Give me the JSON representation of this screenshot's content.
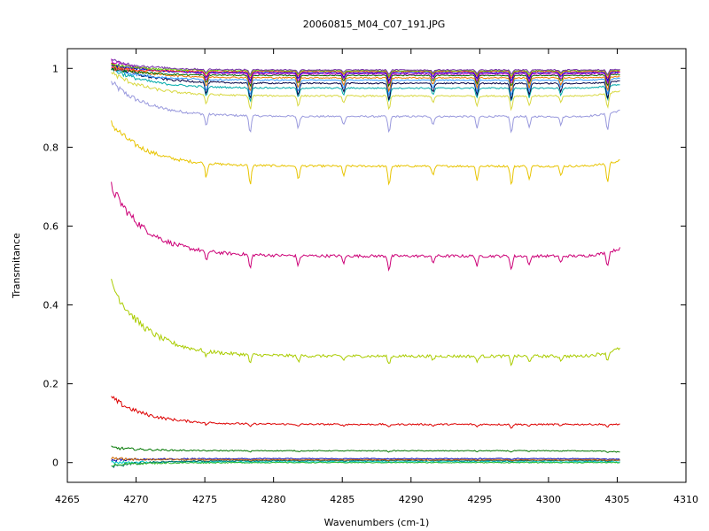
{
  "chart_data": {
    "type": "line",
    "title": "20060815_M04_C07_191.JPG",
    "xlabel": "Wavenumbers (cm-1)",
    "ylabel": "Transmitance",
    "xlim": [
      4265,
      4310
    ],
    "ylim": [
      -0.05,
      1.05
    ],
    "x_ticks": [
      4265,
      4270,
      4275,
      4280,
      4285,
      4290,
      4295,
      4300,
      4305,
      4310
    ],
    "x_tick_labels": [
      "4265",
      "4270",
      "4275",
      "4280",
      "4285",
      "4290",
      "4295",
      "4300",
      "4305",
      "4310"
    ],
    "y_ticks": [
      0,
      0.2,
      0.4,
      0.6,
      0.8,
      1
    ],
    "y_tick_labels": [
      "0",
      "0.2",
      "0.4",
      "0.6",
      "0.8",
      "1"
    ],
    "grid": false,
    "x_range": [
      4268.2,
      4305.2
    ],
    "absorption_lines_x": [
      4275.1,
      4278.3,
      4281.8,
      4285.1,
      4288.4,
      4291.6,
      4294.8,
      4297.3,
      4298.6,
      4300.9,
      4304.3
    ],
    "series": [
      {
        "color": "#9999dd",
        "start": 0.965,
        "plateau": 0.878,
        "end": 0.893,
        "dip": 0.03
      },
      {
        "color": "#e8c400",
        "start": 0.86,
        "plateau": 0.752,
        "end": 0.766,
        "dip": 0.035
      },
      {
        "color": "#cc0077",
        "start": 0.7,
        "plateau": 0.524,
        "end": 0.543,
        "dip": 0.025
      },
      {
        "color": "#aacc00",
        "start": 0.455,
        "plateau": 0.27,
        "end": 0.29,
        "dip": 0.015
      },
      {
        "color": "#dd0000",
        "start": 0.165,
        "plateau": 0.097,
        "end": 0.097,
        "dip": 0.006
      },
      {
        "color": "#007700",
        "start": 0.038,
        "plateau": 0.03,
        "end": 0.027,
        "dip": 0.002
      },
      {
        "color": "#d8d840",
        "start": 0.99,
        "plateau": 0.93,
        "end": 0.943,
        "dip": 0.025
      },
      {
        "color": "#00aaaa",
        "start": 1.0,
        "plateau": 0.95,
        "end": 0.96,
        "dip": 0.025
      },
      {
        "color": "#000044",
        "start": 1.01,
        "plateau": 0.962,
        "end": 0.968,
        "dip": 0.03
      },
      {
        "color": "#3399ff",
        "start": 1.0,
        "plateau": 0.97,
        "end": 0.975,
        "dip": 0.028
      },
      {
        "color": "#ee7700",
        "start": 1.01,
        "plateau": 0.976,
        "end": 0.98,
        "dip": 0.025
      },
      {
        "color": "#006600",
        "start": 1.0,
        "plateau": 0.982,
        "end": 0.985,
        "dip": 0.02
      },
      {
        "color": "#cc00cc",
        "start": 1.02,
        "plateau": 0.986,
        "end": 0.989,
        "dip": 0.018
      },
      {
        "color": "#0000cc",
        "start": 1.01,
        "plateau": 0.989,
        "end": 0.991,
        "dip": 0.015
      },
      {
        "color": "#ff3333",
        "start": 1.0,
        "plateau": 0.992,
        "end": 0.993,
        "dip": 0.012
      },
      {
        "color": "#66cc00",
        "start": 1.01,
        "plateau": 0.994,
        "end": 0.995,
        "dip": 0.01
      },
      {
        "color": "#7733aa",
        "start": 1.02,
        "plateau": 0.996,
        "end": 0.997,
        "dip": 0.008
      },
      {
        "color": "#00cccc",
        "start": 0.0,
        "plateau": 0.002,
        "end": 0.002,
        "dip": 0.001
      },
      {
        "color": "#0000aa",
        "start": 0.005,
        "plateau": 0.01,
        "end": 0.008,
        "dip": 0.001
      },
      {
        "color": "#006666",
        "start": -0.01,
        "plateau": 0.005,
        "end": 0.005,
        "dip": 0.001
      },
      {
        "color": "#33bb33",
        "start": -0.005,
        "plateau": 0.0,
        "end": 0.0,
        "dip": 0.0
      },
      {
        "color": "#cc6600",
        "start": 0.01,
        "plateau": 0.007,
        "end": 0.006,
        "dip": 0.001
      }
    ]
  }
}
